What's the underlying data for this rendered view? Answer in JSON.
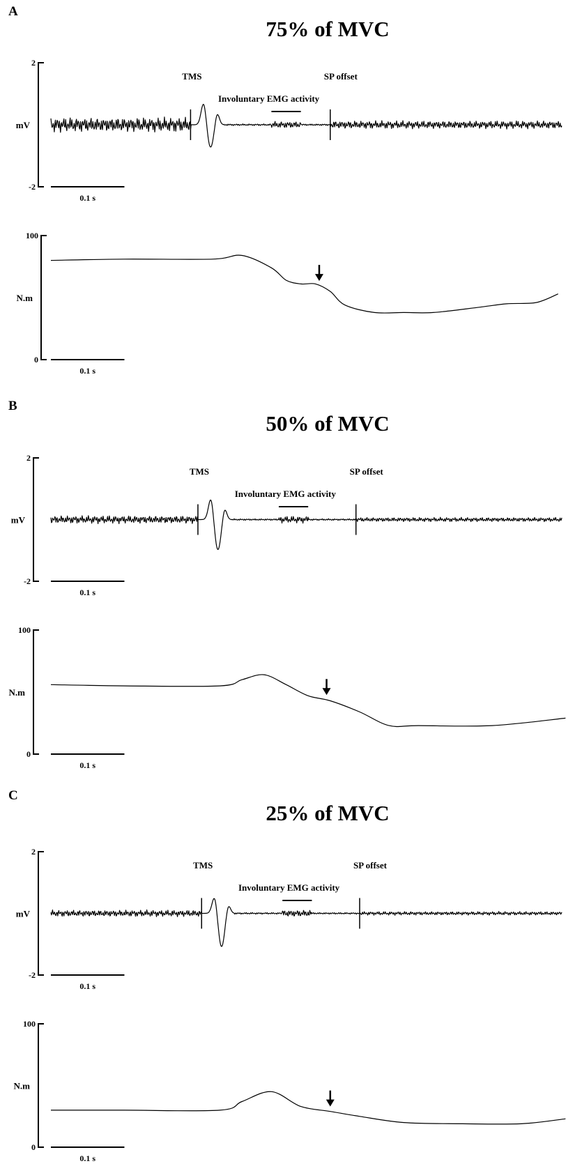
{
  "chart_data": [
    {
      "type": "line",
      "panel_label": "A",
      "title": "75% of MVC",
      "emg": {
        "ylabel": "mV",
        "ylim": [
          -2,
          2
        ],
        "yticks": [
          "2",
          "-2"
        ],
        "scale_bar": "0.1 s",
        "annotations": {
          "tms": "TMS",
          "sp_offset": "SP offset",
          "involuntary": "Involuntary EMG activity"
        },
        "tms_time_s": 0.19,
        "sp_offset_time_s": 0.38,
        "noise_amplitude_mV": 0.22,
        "mep_peak_mV": 0.75,
        "mep_trough_mV": -0.75
      },
      "torque": {
        "ylabel": "N.m",
        "ylim": [
          0,
          100
        ],
        "yticks": [
          "100",
          "0"
        ],
        "scale_bar": "0.1 s",
        "t": [
          0,
          0.1,
          0.22,
          0.26,
          0.3,
          0.32,
          0.34,
          0.36,
          0.38,
          0.4,
          0.44,
          0.48,
          0.52,
          0.58,
          0.62,
          0.66,
          0.69
        ],
        "values": [
          80,
          81,
          81,
          84,
          74,
          64,
          61,
          61,
          55,
          44,
          38,
          38,
          38,
          42,
          45,
          46,
          53
        ],
        "arrow_time_s": 0.365
      }
    },
    {
      "type": "line",
      "panel_label": "B",
      "title": "50% of MVC",
      "emg": {
        "ylabel": "mV",
        "ylim": [
          -2,
          2
        ],
        "yticks": [
          "2",
          "-2"
        ],
        "scale_bar": "0.1 s",
        "annotations": {
          "tms": "TMS",
          "sp_offset": "SP offset",
          "involuntary": "Involuntary EMG activity"
        },
        "tms_time_s": 0.2,
        "sp_offset_time_s": 0.415,
        "noise_amplitude_mV": 0.12,
        "mep_peak_mV": 0.75,
        "mep_trough_mV": -1.0
      },
      "torque": {
        "ylabel": "N.m",
        "ylim": [
          0,
          100
        ],
        "yticks": [
          "100",
          "0"
        ],
        "scale_bar": "0.1 s",
        "t": [
          0,
          0.1,
          0.23,
          0.26,
          0.29,
          0.32,
          0.35,
          0.38,
          0.42,
          0.46,
          0.5,
          0.6,
          0.7
        ],
        "values": [
          56,
          55,
          55,
          60,
          64,
          56,
          47,
          43,
          34,
          23,
          23,
          23,
          29
        ],
        "arrow_time_s": 0.375
      }
    },
    {
      "type": "line",
      "panel_label": "C",
      "title": "25% of MVC",
      "emg": {
        "ylabel": "mV",
        "ylim": [
          -2,
          2
        ],
        "yticks": [
          "2",
          "-2"
        ],
        "scale_bar": "0.1 s",
        "annotations": {
          "tms": "TMS",
          "sp_offset": "SP offset",
          "involuntary": "Involuntary EMG activity"
        },
        "tms_time_s": 0.205,
        "sp_offset_time_s": 0.42,
        "noise_amplitude_mV": 0.1,
        "mep_peak_mV": 0.6,
        "mep_trough_mV": -1.1
      },
      "torque": {
        "ylabel": "N.m",
        "ylim": [
          0,
          100
        ],
        "yticks": [
          "100",
          "0"
        ],
        "scale_bar": "0.1 s",
        "t": [
          0,
          0.1,
          0.23,
          0.26,
          0.3,
          0.34,
          0.38,
          0.42,
          0.48,
          0.56,
          0.64,
          0.7
        ],
        "values": [
          30,
          30,
          30,
          37,
          45,
          33,
          29,
          25,
          20,
          19,
          19,
          23
        ],
        "arrow_time_s": 0.38
      }
    }
  ]
}
